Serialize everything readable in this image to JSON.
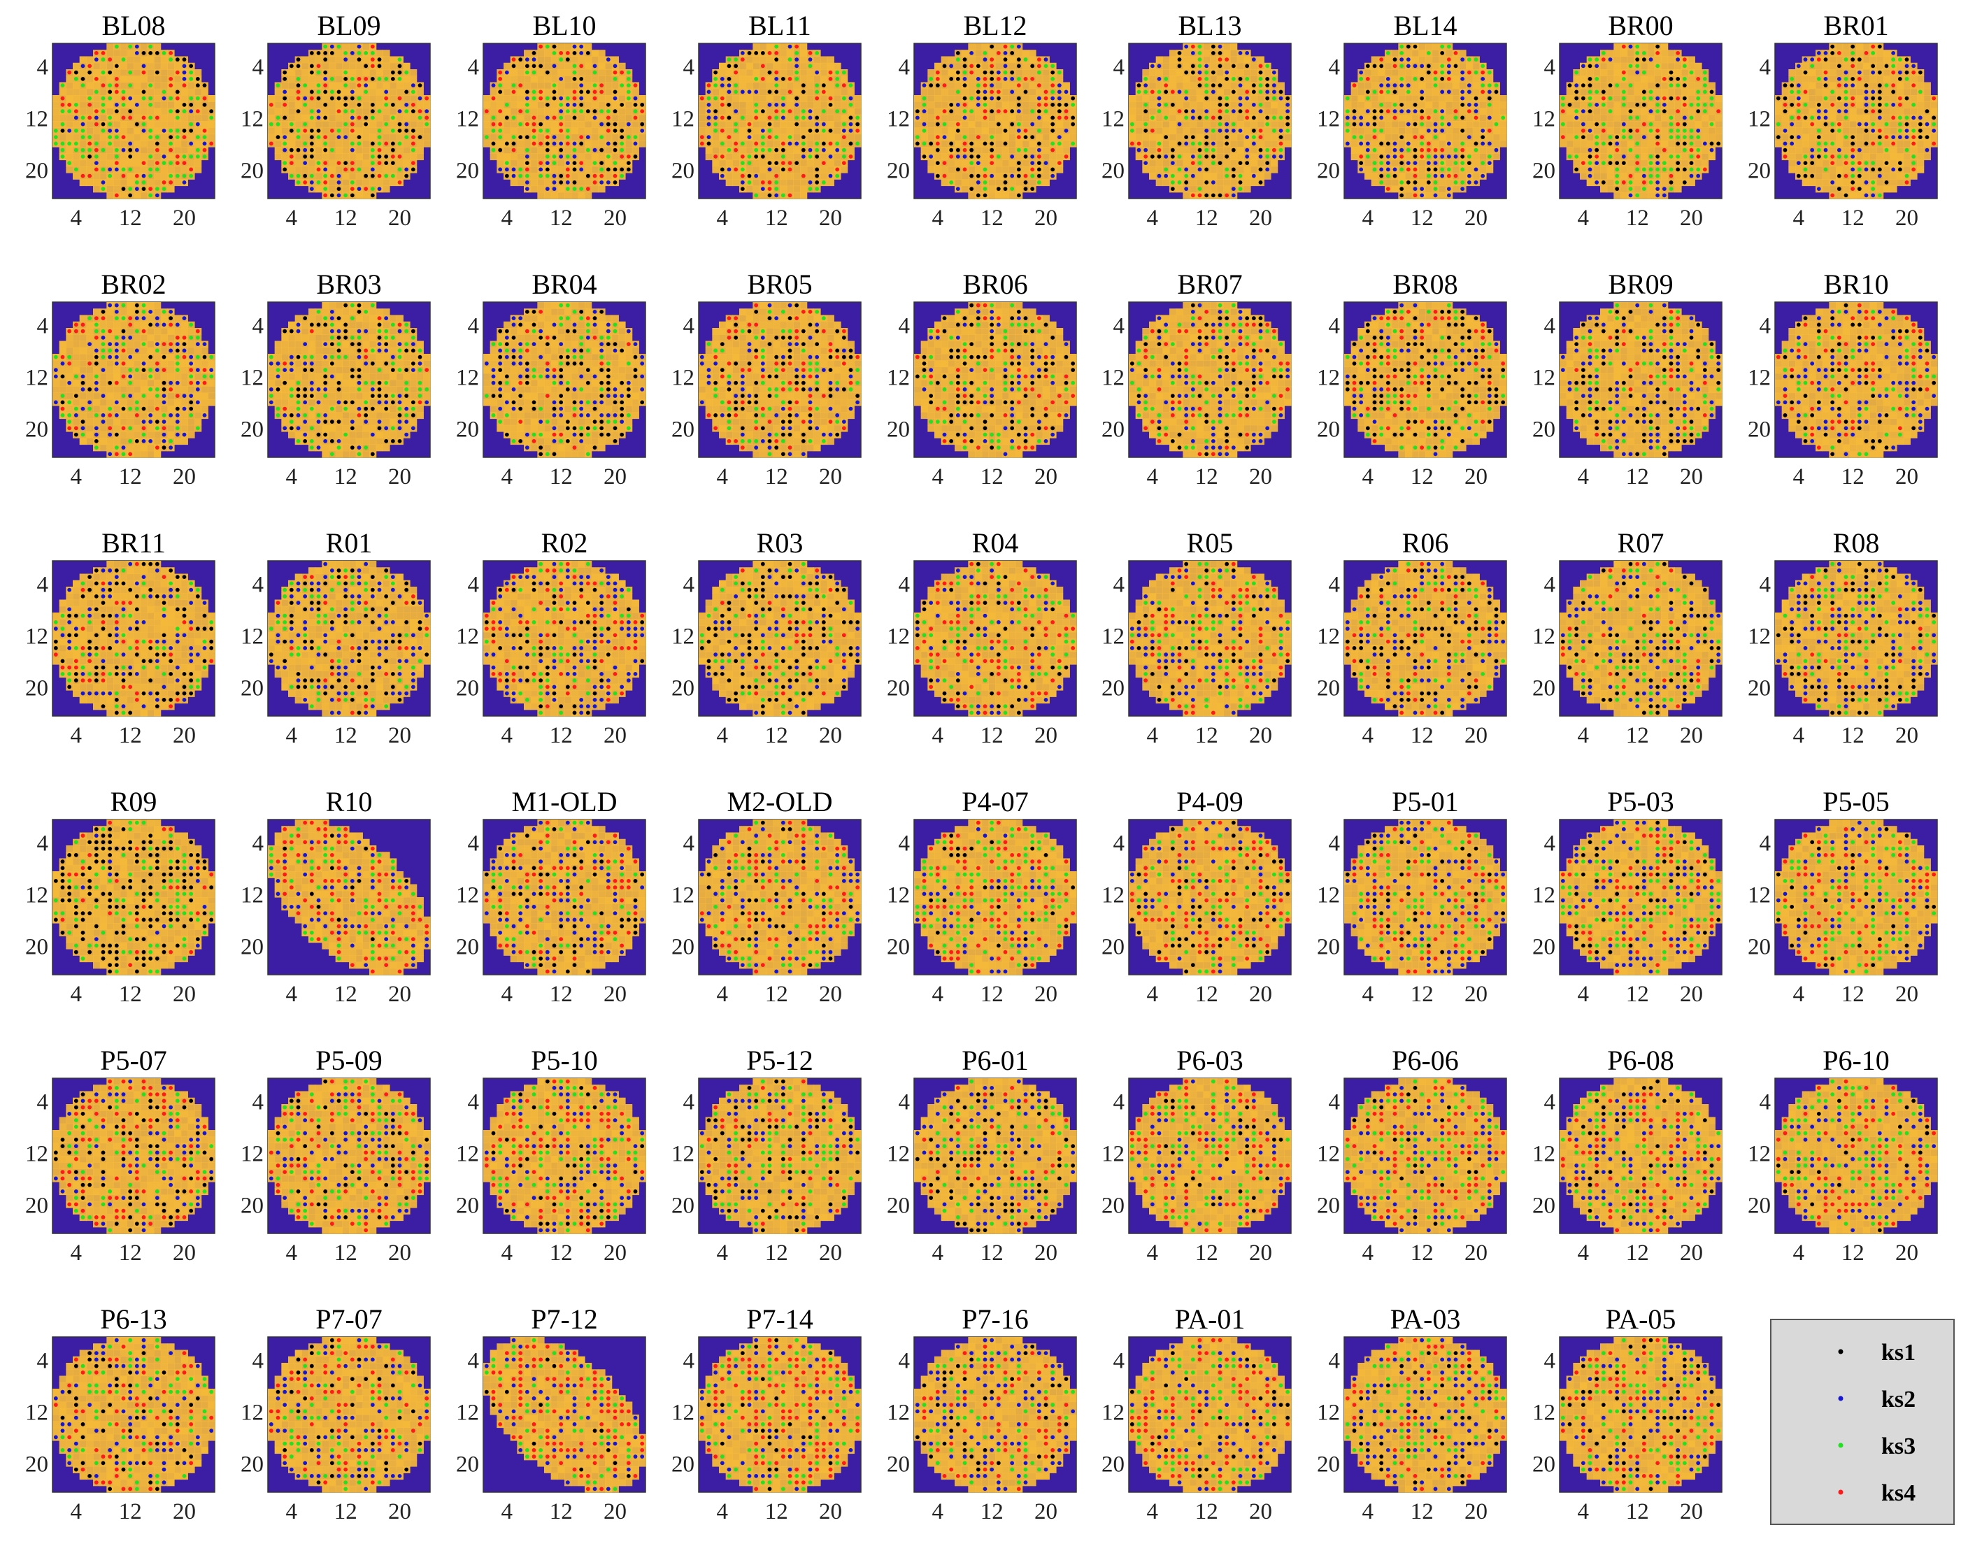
{
  "chart_data": {
    "type": "heatmap",
    "layout": {
      "rows": 6,
      "cols": 9
    },
    "grid_size": 24,
    "xticks": [
      "4",
      "12",
      "20"
    ],
    "yticks": [
      "4",
      "12",
      "20"
    ],
    "background_color": "#3b1ea3",
    "fill_color": "#f5b93a",
    "series": [
      {
        "name": "ks1",
        "color": "#000000"
      },
      {
        "name": "ks2",
        "color": "#1515d6"
      },
      {
        "name": "ks3",
        "color": "#22e022"
      },
      {
        "name": "ks4",
        "color": "#ff1a1a"
      }
    ],
    "legend": {
      "position": "bottom-right",
      "entries": [
        "ks1",
        "ks2",
        "ks3",
        "ks4"
      ]
    },
    "panels": [
      {
        "title": "BL08",
        "shape": "circle",
        "dominant": [
          0.15,
          0.15,
          0.45,
          0.25
        ]
      },
      {
        "title": "BL09",
        "shape": "circle",
        "dominant": [
          0.35,
          0.15,
          0.3,
          0.2
        ]
      },
      {
        "title": "BL10",
        "shape": "circle",
        "dominant": [
          0.25,
          0.25,
          0.3,
          0.2
        ]
      },
      {
        "title": "BL11",
        "shape": "circle",
        "dominant": [
          0.2,
          0.3,
          0.25,
          0.25
        ]
      },
      {
        "title": "BL12",
        "shape": "circle",
        "dominant": [
          0.35,
          0.2,
          0.25,
          0.2
        ]
      },
      {
        "title": "BL13",
        "shape": "circle",
        "dominant": [
          0.3,
          0.3,
          0.3,
          0.1
        ]
      },
      {
        "title": "BL14",
        "shape": "circle",
        "dominant": [
          0.25,
          0.3,
          0.3,
          0.15
        ]
      },
      {
        "title": "BR00",
        "shape": "circle",
        "dominant": [
          0.25,
          0.15,
          0.5,
          0.1
        ]
      },
      {
        "title": "BR01",
        "shape": "circle",
        "dominant": [
          0.3,
          0.25,
          0.3,
          0.15
        ]
      },
      {
        "title": "BR02",
        "shape": "circle",
        "dominant": [
          0.15,
          0.35,
          0.35,
          0.15
        ]
      },
      {
        "title": "BR03",
        "shape": "circle",
        "dominant": [
          0.35,
          0.25,
          0.35,
          0.05
        ]
      },
      {
        "title": "BR04",
        "shape": "circle",
        "dominant": [
          0.35,
          0.3,
          0.25,
          0.1
        ]
      },
      {
        "title": "BR05",
        "shape": "circle",
        "dominant": [
          0.3,
          0.25,
          0.2,
          0.25
        ]
      },
      {
        "title": "BR06",
        "shape": "circle",
        "dominant": [
          0.35,
          0.3,
          0.2,
          0.15
        ]
      },
      {
        "title": "BR07",
        "shape": "circle",
        "dominant": [
          0.2,
          0.3,
          0.3,
          0.2
        ]
      },
      {
        "title": "BR08",
        "shape": "circle",
        "dominant": [
          0.35,
          0.2,
          0.25,
          0.2
        ]
      },
      {
        "title": "BR09",
        "shape": "circle",
        "dominant": [
          0.3,
          0.35,
          0.25,
          0.1
        ]
      },
      {
        "title": "BR10",
        "shape": "circle",
        "dominant": [
          0.3,
          0.3,
          0.2,
          0.2
        ]
      },
      {
        "title": "BR11",
        "shape": "circle",
        "dominant": [
          0.4,
          0.25,
          0.2,
          0.15
        ]
      },
      {
        "title": "R01",
        "shape": "circle",
        "dominant": [
          0.3,
          0.35,
          0.25,
          0.1
        ]
      },
      {
        "title": "R02",
        "shape": "circle",
        "dominant": [
          0.2,
          0.35,
          0.2,
          0.25
        ]
      },
      {
        "title": "R03",
        "shape": "circle",
        "dominant": [
          0.45,
          0.2,
          0.25,
          0.1
        ]
      },
      {
        "title": "R04",
        "shape": "circle",
        "dominant": [
          0.2,
          0.25,
          0.3,
          0.25
        ]
      },
      {
        "title": "R05",
        "shape": "circle",
        "dominant": [
          0.2,
          0.3,
          0.25,
          0.25
        ]
      },
      {
        "title": "R06",
        "shape": "circle",
        "dominant": [
          0.3,
          0.3,
          0.25,
          0.15
        ]
      },
      {
        "title": "R07",
        "shape": "circle",
        "dominant": [
          0.25,
          0.35,
          0.3,
          0.1
        ]
      },
      {
        "title": "R08",
        "shape": "circle",
        "dominant": [
          0.3,
          0.35,
          0.3,
          0.05
        ]
      },
      {
        "title": "R09",
        "shape": "circle",
        "dominant": [
          0.55,
          0.05,
          0.3,
          0.1
        ]
      },
      {
        "title": "R10",
        "shape": "ellipse",
        "dominant": [
          0.05,
          0.25,
          0.3,
          0.4
        ]
      },
      {
        "title": "M1-OLD",
        "shape": "circle",
        "dominant": [
          0.2,
          0.35,
          0.2,
          0.25
        ]
      },
      {
        "title": "M2-OLD",
        "shape": "circle",
        "dominant": [
          0.1,
          0.3,
          0.25,
          0.35
        ]
      },
      {
        "title": "P4-07",
        "shape": "circle",
        "dominant": [
          0.1,
          0.2,
          0.35,
          0.35
        ]
      },
      {
        "title": "P4-09",
        "shape": "circle",
        "dominant": [
          0.15,
          0.2,
          0.3,
          0.35
        ]
      },
      {
        "title": "P5-01",
        "shape": "circle",
        "dominant": [
          0.15,
          0.3,
          0.25,
          0.3
        ]
      },
      {
        "title": "P5-03",
        "shape": "circle",
        "dominant": [
          0.15,
          0.3,
          0.35,
          0.2
        ]
      },
      {
        "title": "P5-05",
        "shape": "circle",
        "dominant": [
          0.15,
          0.25,
          0.35,
          0.25
        ]
      },
      {
        "title": "P5-07",
        "shape": "circle",
        "dominant": [
          0.25,
          0.2,
          0.25,
          0.3
        ]
      },
      {
        "title": "P5-09",
        "shape": "circle",
        "dominant": [
          0.15,
          0.3,
          0.25,
          0.3
        ]
      },
      {
        "title": "P5-10",
        "shape": "circle",
        "dominant": [
          0.15,
          0.25,
          0.3,
          0.3
        ]
      },
      {
        "title": "P5-12",
        "shape": "circle",
        "dominant": [
          0.25,
          0.3,
          0.3,
          0.15
        ]
      },
      {
        "title": "P6-01",
        "shape": "circle",
        "dominant": [
          0.3,
          0.3,
          0.25,
          0.15
        ]
      },
      {
        "title": "P6-03",
        "shape": "circle",
        "dominant": [
          0.1,
          0.25,
          0.35,
          0.3
        ]
      },
      {
        "title": "P6-06",
        "shape": "circle",
        "dominant": [
          0.1,
          0.3,
          0.35,
          0.25
        ]
      },
      {
        "title": "P6-08",
        "shape": "circle",
        "dominant": [
          0.15,
          0.3,
          0.3,
          0.25
        ]
      },
      {
        "title": "P6-10",
        "shape": "circle",
        "dominant": [
          0.1,
          0.25,
          0.3,
          0.35
        ]
      },
      {
        "title": "P6-13",
        "shape": "circle",
        "dominant": [
          0.15,
          0.3,
          0.3,
          0.25
        ]
      },
      {
        "title": "P7-07",
        "shape": "circle",
        "dominant": [
          0.15,
          0.3,
          0.25,
          0.3
        ]
      },
      {
        "title": "P7-12",
        "shape": "ellipse",
        "dominant": [
          0.05,
          0.25,
          0.3,
          0.4
        ]
      },
      {
        "title": "P7-14",
        "shape": "circle",
        "dominant": [
          0.1,
          0.2,
          0.3,
          0.4
        ]
      },
      {
        "title": "P7-16",
        "shape": "circle",
        "dominant": [
          0.15,
          0.35,
          0.3,
          0.2
        ]
      },
      {
        "title": "PA-01",
        "shape": "circle",
        "dominant": [
          0.15,
          0.25,
          0.3,
          0.3
        ]
      },
      {
        "title": "PA-03",
        "shape": "circle",
        "dominant": [
          0.15,
          0.3,
          0.3,
          0.25
        ]
      },
      {
        "title": "PA-05",
        "shape": "circle",
        "dominant": [
          0.2,
          0.3,
          0.25,
          0.25
        ]
      }
    ]
  }
}
